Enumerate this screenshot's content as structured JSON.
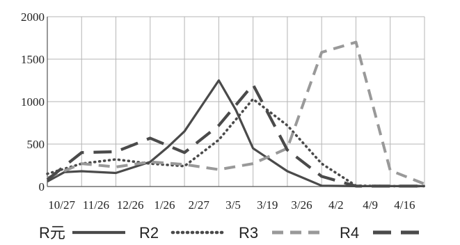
{
  "chart_data": {
    "type": "line",
    "categories": [
      "10/27",
      "11/26",
      "12/26",
      "1/26",
      "2/27",
      "3/5",
      "3/19",
      "3/26",
      "4/2",
      "4/9",
      "4/16"
    ],
    "y_ticks": [
      "0",
      "500",
      "1000",
      "1500",
      "2000"
    ],
    "ylim": [
      0,
      2000
    ],
    "grid": true,
    "legend_position": "bottom",
    "series": [
      {
        "name": "R元",
        "style": "solid",
        "color": "#4a4a4a",
        "points": [
          [
            0,
            60
          ],
          [
            0.5,
            170
          ],
          [
            1,
            180
          ],
          [
            2,
            160
          ],
          [
            3,
            290
          ],
          [
            3.5,
            460
          ],
          [
            4,
            650
          ],
          [
            4.5,
            950
          ],
          [
            5,
            1250
          ],
          [
            5.5,
            900
          ],
          [
            6,
            450
          ],
          [
            7,
            180
          ],
          [
            8,
            10
          ],
          [
            9,
            5
          ],
          [
            10,
            5
          ],
          [
            11,
            5
          ]
        ]
      },
      {
        "name": "R2",
        "style": "dotted",
        "color": "#4a4a4a",
        "points": [
          [
            0,
            150
          ],
          [
            1,
            270
          ],
          [
            2,
            320
          ],
          [
            3,
            270
          ],
          [
            4,
            240
          ],
          [
            5,
            550
          ],
          [
            6,
            1030
          ],
          [
            7,
            720
          ],
          [
            8,
            270
          ],
          [
            9,
            10
          ],
          [
            10,
            5
          ],
          [
            11,
            5
          ]
        ]
      },
      {
        "name": "R3",
        "style": "dashed",
        "color": "#999999",
        "points": [
          [
            0,
            100
          ],
          [
            1,
            270
          ],
          [
            2,
            230
          ],
          [
            3,
            290
          ],
          [
            4,
            260
          ],
          [
            5,
            200
          ],
          [
            6,
            270
          ],
          [
            7,
            450
          ],
          [
            8,
            1580
          ],
          [
            9,
            1700
          ],
          [
            10,
            190
          ],
          [
            11,
            30
          ]
        ]
      },
      {
        "name": "R4",
        "style": "longdash",
        "color": "#4a4a4a",
        "points": [
          [
            0,
            80
          ],
          [
            1,
            400
          ],
          [
            2,
            410
          ],
          [
            3,
            570
          ],
          [
            4,
            400
          ],
          [
            5,
            720
          ],
          [
            6,
            1200
          ],
          [
            7,
            430
          ],
          [
            8,
            120
          ],
          [
            9,
            5
          ],
          [
            10,
            5
          ],
          [
            11,
            5
          ]
        ]
      }
    ]
  }
}
